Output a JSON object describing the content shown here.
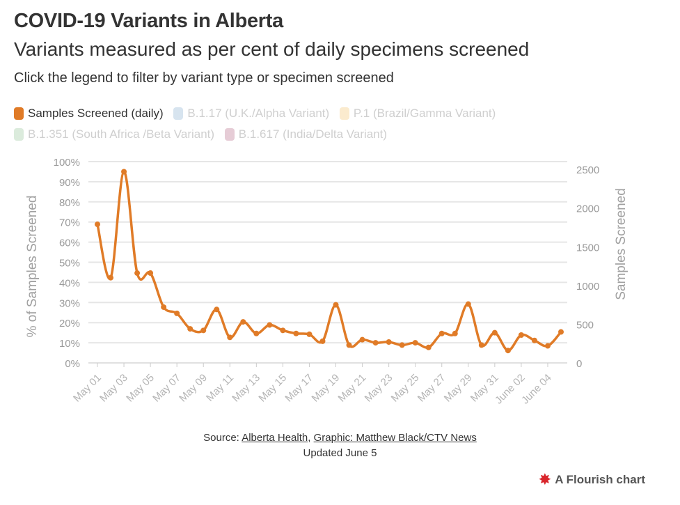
{
  "header": {
    "title": "COVID-19 Variants in Alberta",
    "subtitle": "Variants measured as per cent of daily specimens screened",
    "note": "Click the legend to filter by variant type or specimen screened"
  },
  "legend": [
    {
      "label": "Samples Screened (daily)",
      "color": "#e07b27",
      "active": true
    },
    {
      "label": "B.1.17 (U.K./Alpha Variant)",
      "color": "#6f9fc7",
      "active": false
    },
    {
      "label": "P.1 (Brazil/Gamma Variant)",
      "color": "#f2b750",
      "active": false
    },
    {
      "label": "B.1.351 (South Africa /Beta Variant)",
      "color": "#7cb680",
      "active": false
    },
    {
      "label": "B.1.617 (India/Delta Variant)",
      "color": "#a5476b",
      "active": false
    }
  ],
  "chart_data": {
    "type": "line",
    "x": [
      "May 01",
      "May 02",
      "May 03",
      "May 04",
      "May 05",
      "May 06",
      "May 07",
      "May 08",
      "May 09",
      "May 10",
      "May 11",
      "May 12",
      "May 13",
      "May 14",
      "May 15",
      "May 16",
      "May 17",
      "May 18",
      "May 19",
      "May 20",
      "May 21",
      "May 22",
      "May 23",
      "May 24",
      "May 25",
      "May 26",
      "May 27",
      "May 28",
      "May 29",
      "May 30",
      "May 31",
      "June 01",
      "June 02",
      "June 03",
      "June 04",
      "June 05"
    ],
    "x_tick_labels": [
      "May 01",
      "May 03",
      "May 05",
      "May 07",
      "May 09",
      "May 11",
      "May 13",
      "May 15",
      "May 17",
      "May 19",
      "May 21",
      "May 23",
      "May 25",
      "May 27",
      "May 29",
      "May 31",
      "June 02",
      "June 04"
    ],
    "series": [
      {
        "name": "Samples Screened (daily)",
        "axis": "right",
        "color": "#e07b27",
        "values": [
          1790,
          1100,
          2470,
          1160,
          1160,
          720,
          640,
          440,
          420,
          690,
          330,
          530,
          380,
          490,
          420,
          380,
          370,
          280,
          750,
          230,
          300,
          260,
          270,
          230,
          260,
          200,
          380,
          380,
          760,
          230,
          390,
          160,
          360,
          290,
          220,
          400
        ]
      }
    ],
    "ylabel": "% of Samples Screened",
    "y_ticks": [
      "0%",
      "10%",
      "20%",
      "30%",
      "40%",
      "50%",
      "60%",
      "70%",
      "80%",
      "90%",
      "100%"
    ],
    "ylim": [
      0,
      100
    ],
    "y2label": "Samples Screened",
    "y2_ticks": [
      "0",
      "500",
      "1000",
      "1500",
      "2000",
      "2500"
    ],
    "y2lim": [
      0,
      2600
    ],
    "grid": true
  },
  "footer": {
    "source_prefix": "Source: ",
    "source_link1": "Alberta Health",
    "source_sep": ", ",
    "source_link2": "Graphic: Matthew Black/CTV News",
    "updated": "Updated June 5",
    "badge": "A Flourish chart"
  }
}
